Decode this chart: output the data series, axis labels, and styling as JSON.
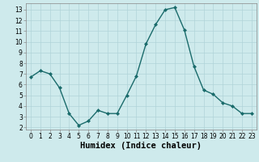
{
  "x": [
    0,
    1,
    2,
    3,
    4,
    5,
    6,
    7,
    8,
    9,
    10,
    11,
    12,
    13,
    14,
    15,
    16,
    17,
    18,
    19,
    20,
    21,
    22,
    23
  ],
  "y": [
    6.7,
    7.3,
    7.0,
    5.7,
    3.3,
    2.2,
    2.6,
    3.6,
    3.3,
    3.3,
    5.0,
    6.8,
    9.8,
    11.6,
    13.0,
    13.2,
    11.1,
    7.7,
    5.5,
    5.1,
    4.3,
    4.0,
    3.3,
    3.3
  ],
  "line_color": "#1a6b6b",
  "marker": "D",
  "marker_size": 2.0,
  "linewidth": 1.0,
  "xlabel": "Humidex (Indice chaleur)",
  "xlim": [
    -0.5,
    23.5
  ],
  "ylim": [
    1.8,
    13.6
  ],
  "yticks": [
    2,
    3,
    4,
    5,
    6,
    7,
    8,
    9,
    10,
    11,
    12,
    13
  ],
  "xticks": [
    0,
    1,
    2,
    3,
    4,
    5,
    6,
    7,
    8,
    9,
    10,
    11,
    12,
    13,
    14,
    15,
    16,
    17,
    18,
    19,
    20,
    21,
    22,
    23
  ],
  "background_color": "#ceeaec",
  "grid_color": "#b0d4d8",
  "tick_fontsize": 5.5,
  "xlabel_fontsize": 7.5
}
